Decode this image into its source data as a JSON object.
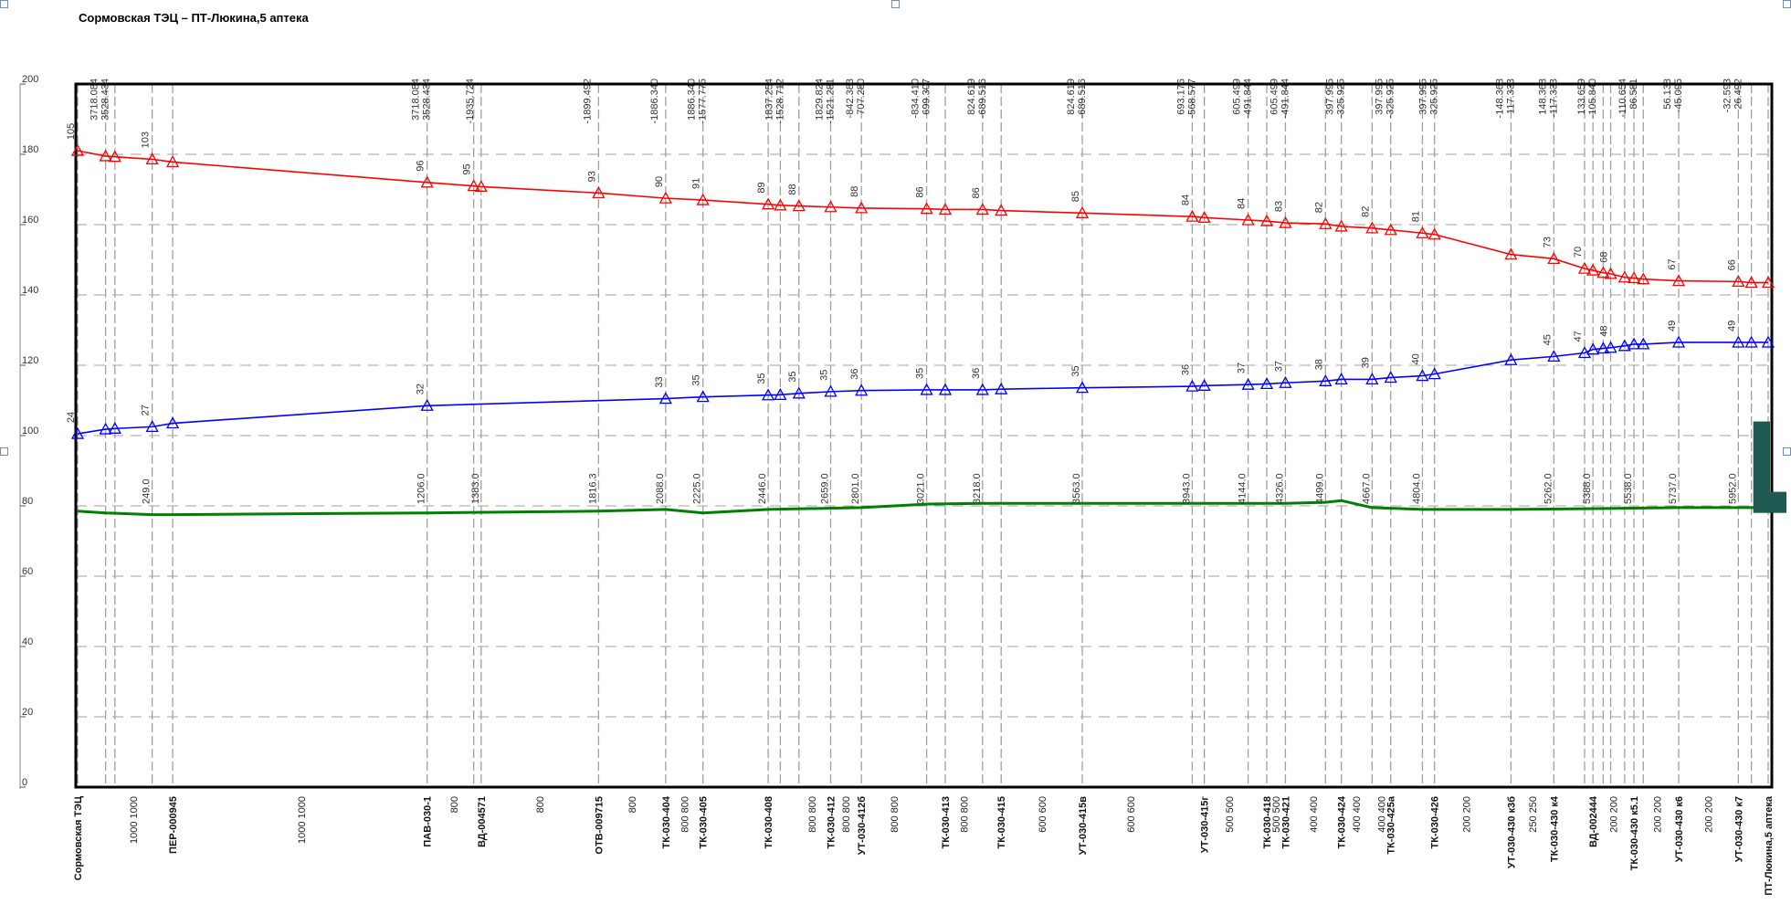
{
  "chart_data": {
    "type": "line",
    "title": "Сормовская ТЭЦ – ПТ-Люкина,5 аптека",
    "ylim": [
      0,
      200
    ],
    "y_ticks": [
      0,
      20,
      40,
      60,
      80,
      100,
      120,
      140,
      160,
      180,
      200
    ],
    "grid": true,
    "colors": {
      "supply": "#ff0000",
      "return": "#0000ff",
      "ground": "#008000",
      "frame": "#000000",
      "grid": "#a0a0a0",
      "bars": "#1f5a52"
    },
    "series": [
      {
        "key": "supply",
        "points": [
          {
            "x": 0,
            "y": 181,
            "label": "105"
          },
          {
            "x": 30,
            "y": 179.5,
            "label": ""
          },
          {
            "x": 40,
            "y": 179.3,
            "label": ""
          },
          {
            "x": 80,
            "y": 178.6,
            "label": "103"
          },
          {
            "x": 102,
            "y": 177.8,
            "label": ""
          },
          {
            "x": 375,
            "y": 172,
            "label": "96"
          },
          {
            "x": 425,
            "y": 171,
            "label": "95"
          },
          {
            "x": 433,
            "y": 170.8,
            "label": ""
          },
          {
            "x": 559,
            "y": 169,
            "label": "93"
          },
          {
            "x": 631,
            "y": 167.5,
            "label": "90"
          },
          {
            "x": 671,
            "y": 167,
            "label": "91"
          },
          {
            "x": 741,
            "y": 165.8,
            "label": "89"
          },
          {
            "x": 754,
            "y": 165.5,
            "label": ""
          },
          {
            "x": 774,
            "y": 165.3,
            "label": "88"
          },
          {
            "x": 808,
            "y": 165,
            "label": ""
          },
          {
            "x": 841,
            "y": 164.7,
            "label": "88"
          },
          {
            "x": 911,
            "y": 164.5,
            "label": "86"
          },
          {
            "x": 931,
            "y": 164.3,
            "label": ""
          },
          {
            "x": 971,
            "y": 164.3,
            "label": "86"
          },
          {
            "x": 991,
            "y": 164,
            "label": ""
          },
          {
            "x": 1078,
            "y": 163.3,
            "label": "85"
          },
          {
            "x": 1196,
            "y": 162.3,
            "label": "84"
          },
          {
            "x": 1209,
            "y": 162,
            "label": ""
          },
          {
            "x": 1256,
            "y": 161.3,
            "label": "84"
          },
          {
            "x": 1276,
            "y": 161,
            "label": ""
          },
          {
            "x": 1296,
            "y": 160.5,
            "label": "83"
          },
          {
            "x": 1339,
            "y": 160.2,
            "label": "82"
          },
          {
            "x": 1356,
            "y": 159.5,
            "label": ""
          },
          {
            "x": 1389,
            "y": 159,
            "label": "82"
          },
          {
            "x": 1409,
            "y": 158.5,
            "label": ""
          },
          {
            "x": 1443,
            "y": 157.6,
            "label": "81"
          },
          {
            "x": 1456,
            "y": 157.2,
            "label": ""
          },
          {
            "x": 1538,
            "y": 151.5,
            "label": ""
          },
          {
            "x": 1584,
            "y": 150.3,
            "label": "73"
          },
          {
            "x": 1617,
            "y": 147.5,
            "label": "70"
          },
          {
            "x": 1626,
            "y": 147,
            "label": ""
          },
          {
            "x": 1637,
            "y": 146.3,
            "label": ""
          },
          {
            "x": 1645,
            "y": 146,
            "label": "68"
          },
          {
            "x": 1660,
            "y": 145,
            "label": ""
          },
          {
            "x": 1670,
            "y": 144.8,
            "label": ""
          },
          {
            "x": 1680,
            "y": 144.5,
            "label": ""
          },
          {
            "x": 1718,
            "y": 144,
            "label": "67"
          },
          {
            "x": 1782,
            "y": 143.8,
            "label": "66"
          },
          {
            "x": 1796,
            "y": 143.5,
            "label": ""
          },
          {
            "x": 1814,
            "y": 143.5,
            "label": ""
          }
        ]
      },
      {
        "key": "return",
        "points": [
          {
            "x": 0,
            "y": 100.5,
            "label": "24"
          },
          {
            "x": 30,
            "y": 101.8,
            "label": ""
          },
          {
            "x": 40,
            "y": 102,
            "label": ""
          },
          {
            "x": 80,
            "y": 102.5,
            "label": "27"
          },
          {
            "x": 102,
            "y": 103.5,
            "label": ""
          },
          {
            "x": 375,
            "y": 108.5,
            "label": "32"
          },
          {
            "x": 631,
            "y": 110.5,
            "label": "33"
          },
          {
            "x": 671,
            "y": 111,
            "label": "35"
          },
          {
            "x": 741,
            "y": 111.5,
            "label": "35"
          },
          {
            "x": 754,
            "y": 111.6,
            "label": ""
          },
          {
            "x": 774,
            "y": 112,
            "label": "35"
          },
          {
            "x": 808,
            "y": 112.5,
            "label": "35"
          },
          {
            "x": 841,
            "y": 112.8,
            "label": "36"
          },
          {
            "x": 911,
            "y": 113,
            "label": "35"
          },
          {
            "x": 931,
            "y": 113,
            "label": ""
          },
          {
            "x": 971,
            "y": 113,
            "label": "36"
          },
          {
            "x": 991,
            "y": 113.2,
            "label": ""
          },
          {
            "x": 1078,
            "y": 113.6,
            "label": "35"
          },
          {
            "x": 1196,
            "y": 114,
            "label": "36"
          },
          {
            "x": 1209,
            "y": 114.2,
            "label": ""
          },
          {
            "x": 1256,
            "y": 114.5,
            "label": "37"
          },
          {
            "x": 1276,
            "y": 114.7,
            "label": ""
          },
          {
            "x": 1296,
            "y": 115,
            "label": "37"
          },
          {
            "x": 1339,
            "y": 115.5,
            "label": "38"
          },
          {
            "x": 1356,
            "y": 116,
            "label": ""
          },
          {
            "x": 1389,
            "y": 116,
            "label": "39"
          },
          {
            "x": 1409,
            "y": 116.5,
            "label": ""
          },
          {
            "x": 1443,
            "y": 117,
            "label": "40"
          },
          {
            "x": 1456,
            "y": 117.5,
            "label": ""
          },
          {
            "x": 1538,
            "y": 121.5,
            "label": ""
          },
          {
            "x": 1584,
            "y": 122.5,
            "label": "45"
          },
          {
            "x": 1617,
            "y": 123.5,
            "label": "47"
          },
          {
            "x": 1626,
            "y": 124.5,
            "label": ""
          },
          {
            "x": 1637,
            "y": 124.8,
            "label": ""
          },
          {
            "x": 1645,
            "y": 125,
            "label": "48"
          },
          {
            "x": 1660,
            "y": 125.5,
            "label": ""
          },
          {
            "x": 1670,
            "y": 126,
            "label": ""
          },
          {
            "x": 1680,
            "y": 126,
            "label": ""
          },
          {
            "x": 1718,
            "y": 126.5,
            "label": "49"
          },
          {
            "x": 1782,
            "y": 126.5,
            "label": "49"
          },
          {
            "x": 1796,
            "y": 126.5,
            "label": ""
          },
          {
            "x": 1814,
            "y": 126.5,
            "label": ""
          }
        ]
      },
      {
        "key": "ground",
        "points": [
          {
            "x": 0,
            "y": 78.5
          },
          {
            "x": 30,
            "y": 78
          },
          {
            "x": 80,
            "y": 77.5
          },
          {
            "x": 102,
            "y": 77.5
          },
          {
            "x": 375,
            "y": 78
          },
          {
            "x": 559,
            "y": 78.5
          },
          {
            "x": 631,
            "y": 79
          },
          {
            "x": 671,
            "y": 78
          },
          {
            "x": 741,
            "y": 79
          },
          {
            "x": 841,
            "y": 79.5
          },
          {
            "x": 911,
            "y": 80.5
          },
          {
            "x": 971,
            "y": 80.7
          },
          {
            "x": 1078,
            "y": 80.7
          },
          {
            "x": 1196,
            "y": 80.7
          },
          {
            "x": 1256,
            "y": 80.7
          },
          {
            "x": 1296,
            "y": 80.7
          },
          {
            "x": 1339,
            "y": 81
          },
          {
            "x": 1356,
            "y": 81.5
          },
          {
            "x": 1389,
            "y": 79.5
          },
          {
            "x": 1443,
            "y": 79
          },
          {
            "x": 1538,
            "y": 79
          },
          {
            "x": 1617,
            "y": 79.2
          },
          {
            "x": 1718,
            "y": 79.5
          },
          {
            "x": 1814,
            "y": 79.5
          }
        ]
      }
    ],
    "ground_labels": [
      {
        "x": 80,
        "label": "249.0"
      },
      {
        "x": 375,
        "label": "1206.0"
      },
      {
        "x": 433,
        "label": "1383.0"
      },
      {
        "x": 559,
        "label": "1816.3"
      },
      {
        "x": 631,
        "label": "2088.0"
      },
      {
        "x": 671,
        "label": "2225.0"
      },
      {
        "x": 741,
        "label": "2446.0"
      },
      {
        "x": 808,
        "label": "2659.0"
      },
      {
        "x": 841,
        "label": "2801.0"
      },
      {
        "x": 911,
        "label": "3021.0"
      },
      {
        "x": 971,
        "label": "3218.0"
      },
      {
        "x": 1078,
        "label": "3563.0"
      },
      {
        "x": 1196,
        "label": "3943.0"
      },
      {
        "x": 1256,
        "label": "4144.0"
      },
      {
        "x": 1296,
        "label": "4326.0"
      },
      {
        "x": 1339,
        "label": "4499.0"
      },
      {
        "x": 1389,
        "label": "4667.0"
      },
      {
        "x": 1443,
        "label": "4804.0"
      },
      {
        "x": 1584,
        "label": "5262.0"
      },
      {
        "x": 1626,
        "label": "5388.0"
      },
      {
        "x": 1670,
        "label": "5538.0"
      },
      {
        "x": 1718,
        "label": "5737.0"
      },
      {
        "x": 1782,
        "label": "5952.0"
      }
    ],
    "top_labels": [
      {
        "x": 30,
        "lines": [
          "3718.084",
          "3528.434"
        ]
      },
      {
        "x": 375,
        "lines": [
          "3718.084",
          "3528.434"
        ]
      },
      {
        "x": 433,
        "lines": [
          "-1935.724"
        ]
      },
      {
        "x": 559,
        "lines": [
          "-1899.492"
        ]
      },
      {
        "x": 631,
        "lines": [
          "-1886.340"
        ]
      },
      {
        "x": 671,
        "lines": [
          "1886.340",
          "-1577.775"
        ]
      },
      {
        "x": 754,
        "lines": [
          "1837.254",
          "-1528.712"
        ]
      },
      {
        "x": 808,
        "lines": [
          "1829.824",
          "-1521.281"
        ]
      },
      {
        "x": 841,
        "lines": [
          "-842.383",
          "707.280"
        ]
      },
      {
        "x": 911,
        "lines": [
          "-834.410",
          "699.307"
        ]
      },
      {
        "x": 971,
        "lines": [
          "824.619",
          "-689.516"
        ]
      },
      {
        "x": 1078,
        "lines": [
          "824.619",
          "-689.516"
        ]
      },
      {
        "x": 1196,
        "lines": [
          "693.176",
          "-568.577"
        ]
      },
      {
        "x": 1256,
        "lines": [
          "605.499",
          "-491.844"
        ]
      },
      {
        "x": 1296,
        "lines": [
          "605.499",
          "-491.844"
        ]
      },
      {
        "x": 1356,
        "lines": [
          "397.995",
          "-325.925"
        ]
      },
      {
        "x": 1409,
        "lines": [
          "397.995",
          "-325.925"
        ]
      },
      {
        "x": 1456,
        "lines": [
          "397.995",
          "325.925"
        ]
      },
      {
        "x": 1538,
        "lines": [
          "-148.368",
          "117.333"
        ]
      },
      {
        "x": 1584,
        "lines": [
          "148.368",
          "-117.333"
        ]
      },
      {
        "x": 1626,
        "lines": [
          "133.659",
          "-105.840"
        ]
      },
      {
        "x": 1670,
        "lines": [
          "-110.654",
          "86.581"
        ]
      },
      {
        "x": 1718,
        "lines": [
          "56.138",
          "-45.095"
        ]
      },
      {
        "x": 1782,
        "lines": [
          "-32.593",
          "26.492"
        ]
      }
    ],
    "bottom_nodes": [
      {
        "x": 0,
        "label": "Сормовская ТЭЦ"
      },
      {
        "x": 102,
        "label": "ПЕР-000945"
      },
      {
        "x": 375,
        "label": "ПАВ-030-1"
      },
      {
        "x": 433,
        "label": "ВД-004571"
      },
      {
        "x": 559,
        "label": "ОТВ-009715"
      },
      {
        "x": 631,
        "label": "ТК-030-404"
      },
      {
        "x": 671,
        "label": "ТК-030-405"
      },
      {
        "x": 741,
        "label": "ТК-030-408"
      },
      {
        "x": 808,
        "label": "ТК-030-412"
      },
      {
        "x": 841,
        "label": "УТ-030-412б"
      },
      {
        "x": 931,
        "label": "ТК-030-413"
      },
      {
        "x": 991,
        "label": "ТК-030-415"
      },
      {
        "x": 1078,
        "label": "УТ-030-415в"
      },
      {
        "x": 1209,
        "label": "УТ-030-415г"
      },
      {
        "x": 1276,
        "label": "ТК-030-418"
      },
      {
        "x": 1296,
        "label": "ТК-030-421"
      },
      {
        "x": 1356,
        "label": "ТК-030-424"
      },
      {
        "x": 1409,
        "label": "ТК-030-425а"
      },
      {
        "x": 1456,
        "label": "ТК-030-426"
      },
      {
        "x": 1538,
        "label": "УТ-030-430 к3б"
      },
      {
        "x": 1584,
        "label": "ТК-030-430 к4"
      },
      {
        "x": 1626,
        "label": "ВД-002444"
      },
      {
        "x": 1670,
        "label": "ТК-030-430 к5.1"
      },
      {
        "x": 1718,
        "label": "УТ-030-430 к6"
      },
      {
        "x": 1782,
        "label": "УТ-030-430 к7"
      },
      {
        "x": 1814,
        "label": "ПТ-Люкина,5 аптека"
      }
    ],
    "bottom_diameters": [
      {
        "x": 60,
        "label": "1000 1000"
      },
      {
        "x": 240,
        "label": "1000 1000"
      },
      {
        "x": 404,
        "label": "800"
      },
      {
        "x": 496,
        "label": "800"
      },
      {
        "x": 595,
        "label": "800"
      },
      {
        "x": 651,
        "label": "800 800"
      },
      {
        "x": 788,
        "label": "800 800"
      },
      {
        "x": 824,
        "label": "800 800"
      },
      {
        "x": 876,
        "label": "800 800"
      },
      {
        "x": 951,
        "label": "800 800"
      },
      {
        "x": 1035,
        "label": "600 600"
      },
      {
        "x": 1130,
        "label": "600 600"
      },
      {
        "x": 1236,
        "label": "500 500"
      },
      {
        "x": 1286,
        "label": "500 500"
      },
      {
        "x": 1326,
        "label": "400 400"
      },
      {
        "x": 1372,
        "label": "400 400"
      },
      {
        "x": 1399,
        "label": "400 400"
      },
      {
        "x": 1490,
        "label": "200 200"
      },
      {
        "x": 1561,
        "label": "250 250"
      },
      {
        "x": 1648,
        "label": "200 200"
      },
      {
        "x": 1695,
        "label": "200 200"
      },
      {
        "x": 1750,
        "label": "200 200"
      }
    ]
  }
}
